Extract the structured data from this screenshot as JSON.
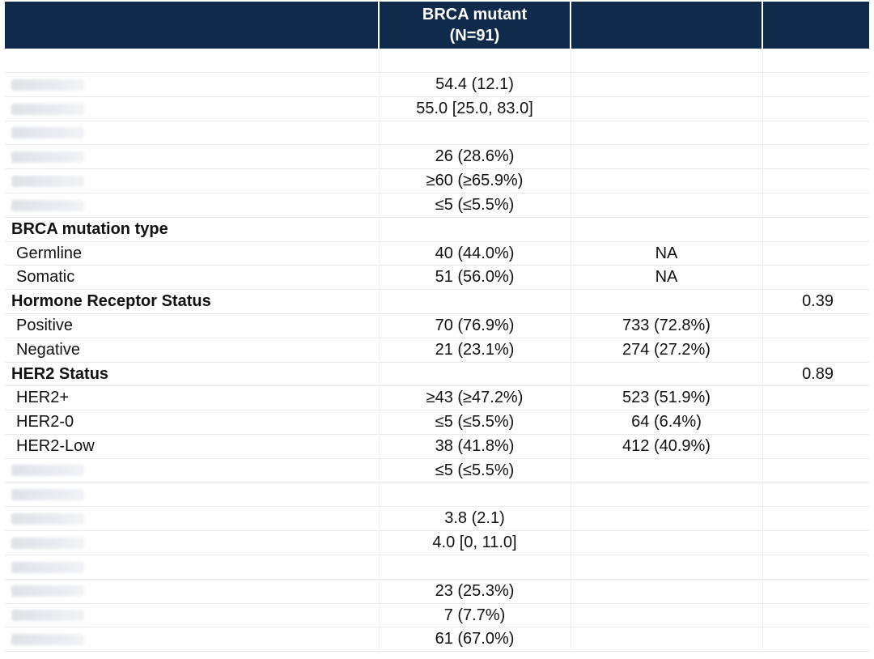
{
  "header": {
    "col2_line1": "BRCA mutant",
    "col2_line2": "(N=91)",
    "col1": "",
    "col3": "",
    "col4": ""
  },
  "rows": [
    {
      "type": "blank",
      "label": "",
      "col2": "",
      "col3": "",
      "col4": ""
    },
    {
      "type": "redacted",
      "label": "",
      "col2": "54.4 (12.1)",
      "col3": "",
      "col4": ""
    },
    {
      "type": "redacted",
      "label": "",
      "col2": "55.0 [25.0, 83.0]",
      "col3": "",
      "col4": ""
    },
    {
      "type": "redacted",
      "label": "",
      "col2": "",
      "col3": "",
      "col4": ""
    },
    {
      "type": "redacted",
      "label": "",
      "col2": "26 (28.6%)",
      "col3": "",
      "col4": ""
    },
    {
      "type": "redacted",
      "label": "",
      "col2": "≥60 (≥65.9%)",
      "col3": "",
      "col4": ""
    },
    {
      "type": "redacted",
      "label": "",
      "col2": "≤5 (≤5.5%)",
      "col3": "",
      "col4": ""
    },
    {
      "type": "section",
      "label": "BRCA mutation type",
      "col2": "",
      "col3": "",
      "col4": ""
    },
    {
      "type": "sub",
      "label": "Germline",
      "col2": "40 (44.0%)",
      "col3": "NA",
      "col4": ""
    },
    {
      "type": "sub",
      "label": "Somatic",
      "col2": "51 (56.0%)",
      "col3": "NA",
      "col4": ""
    },
    {
      "type": "section",
      "label": "Hormone Receptor Status",
      "col2": "",
      "col3": "",
      "col4": "0.39"
    },
    {
      "type": "sub",
      "label": "Positive",
      "col2": "70 (76.9%)",
      "col3": "733 (72.8%)",
      "col4": ""
    },
    {
      "type": "sub",
      "label": "Negative",
      "col2": "21 (23.1%)",
      "col3": "274 (27.2%)",
      "col4": ""
    },
    {
      "type": "section",
      "label": "HER2 Status",
      "col2": "",
      "col3": "",
      "col4": "0.89"
    },
    {
      "type": "sub",
      "label": "HER2+",
      "col2": "≥43 (≥47.2%)",
      "col3": "523 (51.9%)",
      "col4": ""
    },
    {
      "type": "sub",
      "label": "HER2-0",
      "col2": "≤5 (≤5.5%)",
      "col3": "64 (6.4%)",
      "col4": ""
    },
    {
      "type": "sub",
      "label": "HER2-Low",
      "col2": "38 (41.8%)",
      "col3": "412 (40.9%)",
      "col4": ""
    },
    {
      "type": "redacted",
      "label": "",
      "col2": "≤5 (≤5.5%)",
      "col3": "",
      "col4": ""
    },
    {
      "type": "redacted",
      "label": "",
      "col2": "",
      "col3": "",
      "col4": ""
    },
    {
      "type": "redacted",
      "label": "",
      "col2": "3.8 (2.1)",
      "col3": "",
      "col4": ""
    },
    {
      "type": "redacted",
      "label": "",
      "col2": "4.0 [0, 11.0]",
      "col3": "",
      "col4": ""
    },
    {
      "type": "redacted",
      "label": "",
      "col2": "",
      "col3": "",
      "col4": ""
    },
    {
      "type": "redacted",
      "label": "",
      "col2": "23 (25.3%)",
      "col3": "",
      "col4": ""
    },
    {
      "type": "redacted",
      "label": "",
      "col2": "7 (7.7%)",
      "col3": "",
      "col4": ""
    },
    {
      "type": "redacted",
      "label": "",
      "col2": "61 (67.0%)",
      "col3": "",
      "col4": ""
    }
  ],
  "colors": {
    "header_bg": "#0f2a4a",
    "header_text": "#ffffff"
  }
}
